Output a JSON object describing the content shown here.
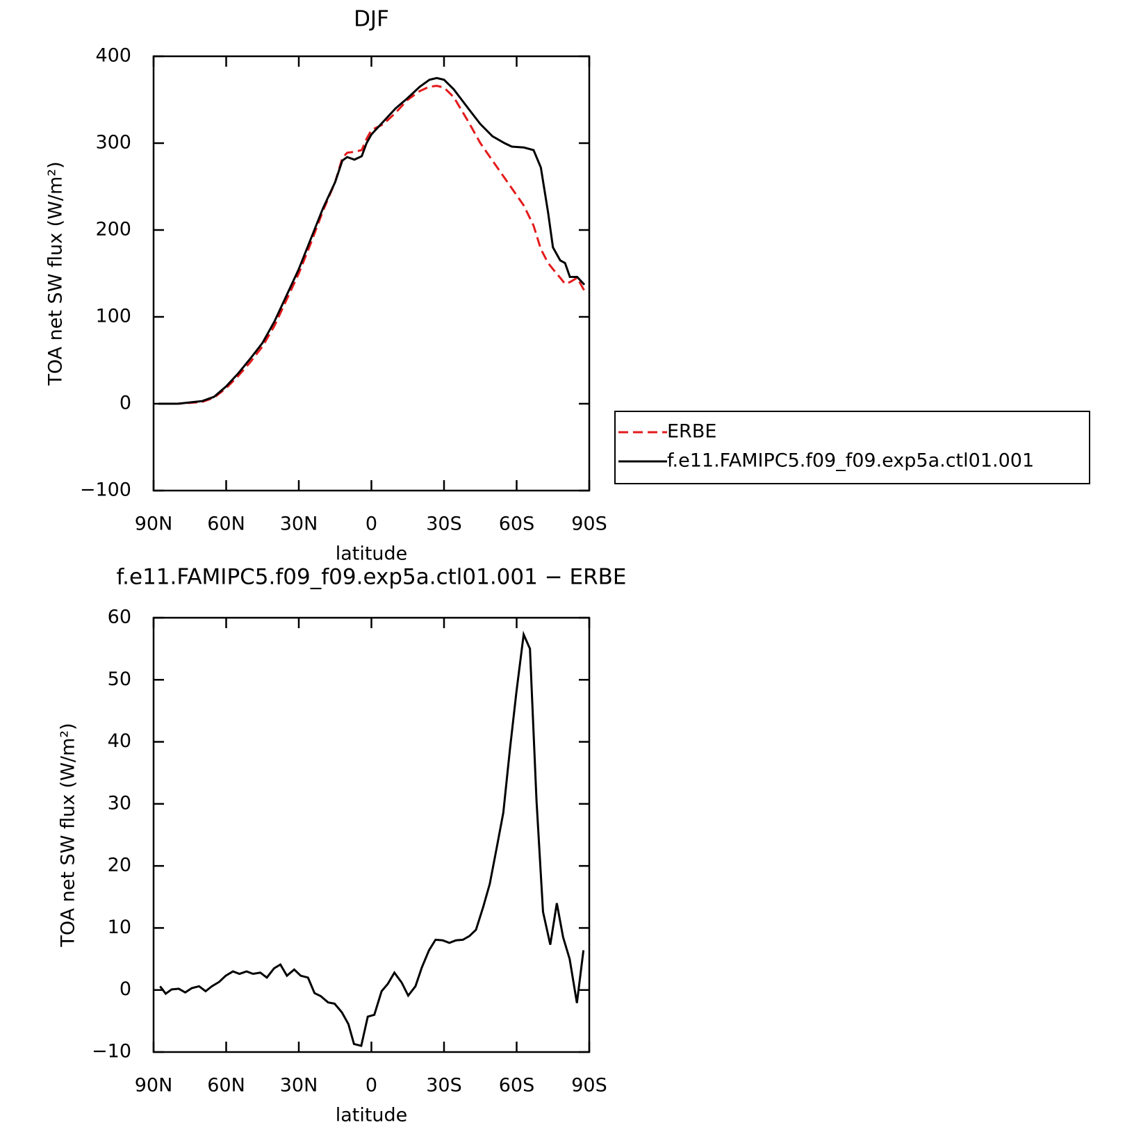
{
  "chart_data": [
    {
      "type": "line",
      "title": "DJF",
      "x_label": "latitude",
      "y_label": "TOA net SW flux (W/m²)",
      "x": [
        88,
        80,
        70,
        65,
        60,
        55,
        50,
        45,
        40,
        35,
        30,
        25,
        20,
        15,
        12,
        10,
        7,
        4,
        2,
        0,
        -5,
        -10,
        -15,
        -20,
        -24,
        -27,
        -30,
        -34,
        -40,
        -45,
        -50,
        -55,
        -58,
        -63,
        -67,
        -70,
        -73,
        -75,
        -78,
        -80,
        -82,
        -85,
        -88
      ],
      "series": [
        {
          "name": "ERBE",
          "color": "#e41a1c",
          "dashed": true,
          "values": [
            0,
            0,
            2,
            7,
            18,
            32,
            48,
            66,
            90,
            120,
            150,
            185,
            222,
            255,
            283,
            289,
            290,
            292,
            305,
            315,
            322,
            335,
            350,
            360,
            365,
            366,
            364,
            353,
            325,
            300,
            280,
            260,
            248,
            228,
            205,
            178,
            162,
            155,
            145,
            138,
            140,
            145,
            130
          ]
        },
        {
          "name": "f.e11.FAMIPC5.f09_f09.exp5a.ctl01.001",
          "color": "#000000",
          "dashed": false,
          "values": [
            0,
            0,
            3,
            8,
            20,
            35,
            52,
            70,
            95,
            125,
            155,
            190,
            225,
            255,
            280,
            284,
            281,
            285,
            300,
            310,
            325,
            340,
            352,
            365,
            373,
            375,
            373,
            362,
            340,
            322,
            308,
            300,
            296,
            295,
            292,
            272,
            220,
            180,
            165,
            162,
            146,
            146,
            137
          ]
        }
      ],
      "xlim": [
        90,
        -90
      ],
      "xticks": [
        {
          "value": 90,
          "label": "90N"
        },
        {
          "value": 60,
          "label": "60N"
        },
        {
          "value": 30,
          "label": "30N"
        },
        0,
        {
          "value": -30,
          "label": "30S"
        },
        {
          "value": -60,
          "label": "60S"
        },
        {
          "value": -90,
          "label": "90S"
        }
      ],
      "ylim": [
        -100,
        400
      ],
      "yticks": [
        {
          "value": -100,
          "label": "−100"
        },
        0,
        100,
        200,
        300,
        400
      ],
      "legend": "right"
    },
    {
      "type": "line",
      "title": "f.e11.FAMIPC5.f09_f09.exp5a.ctl01.001 − ERBE",
      "x_label": "latitude",
      "y_label": "TOA net SW flux (W/m²)",
      "x": [
        87.3,
        85,
        82.5,
        79.6,
        76.9,
        74.2,
        71.2,
        68.5,
        65.9,
        62.9,
        60.2,
        57.2,
        54.5,
        51.6,
        48.9,
        45.9,
        43.2,
        40.2,
        37.6,
        34.9,
        31.9,
        29.2,
        26.2,
        23.5,
        20.9,
        17.9,
        15.2,
        12.2,
        9.5,
        7.2,
        4.2,
        1.5,
        -1.2,
        -4.2,
        -6.8,
        -9.5,
        -12.5,
        -15.2,
        -18.2,
        -20.8,
        -23.8,
        -26.5,
        -29.5,
        -32.2,
        -34.9,
        -37.8,
        -40.5,
        -43.2,
        -46.2,
        -48.9,
        -51.8,
        -54.5,
        -57.2,
        -59.9,
        -62.9,
        -65.5,
        -68.2,
        -70.9,
        -73.9,
        -76.6,
        -79.2,
        -81.9,
        -84.9,
        -87.6
      ],
      "color": "#000000",
      "values": [
        0.6,
        -0.6,
        0.1,
        0.2,
        -0.4,
        0.3,
        0.6,
        -0.2,
        0.6,
        1.3,
        2.3,
        3.0,
        2.6,
        3.0,
        2.6,
        2.8,
        2.0,
        3.5,
        4.1,
        2.3,
        3.3,
        2.3,
        2.0,
        -0.5,
        -1.0,
        -2.0,
        -2.2,
        -3.6,
        -5.5,
        -8.7,
        -9.0,
        -4.3,
        -4.0,
        -0.2,
        1.0,
        2.8,
        1.2,
        -0.9,
        0.6,
        3.6,
        6.4,
        8.1,
        8.0,
        7.6,
        8.0,
        8.1,
        8.7,
        9.7,
        13.4,
        17.1,
        23.0,
        28.6,
        38.7,
        48.0,
        57.3,
        55.0,
        30.6,
        12.6,
        7.3,
        14.0,
        8.5,
        5.0,
        -2.1,
        6.4
      ],
      "xlim": [
        90,
        -90
      ],
      "xticks": [
        {
          "value": 90,
          "label": "90N"
        },
        {
          "value": 60,
          "label": "60N"
        },
        {
          "value": 30,
          "label": "30N"
        },
        0,
        {
          "value": -30,
          "label": "30S"
        },
        {
          "value": -60,
          "label": "60S"
        },
        {
          "value": -90,
          "label": "90S"
        }
      ],
      "ylim": [
        -10,
        60
      ],
      "yticks": [
        {
          "value": -10,
          "label": "−10"
        },
        0,
        10,
        20,
        30,
        40,
        50,
        60
      ]
    }
  ]
}
